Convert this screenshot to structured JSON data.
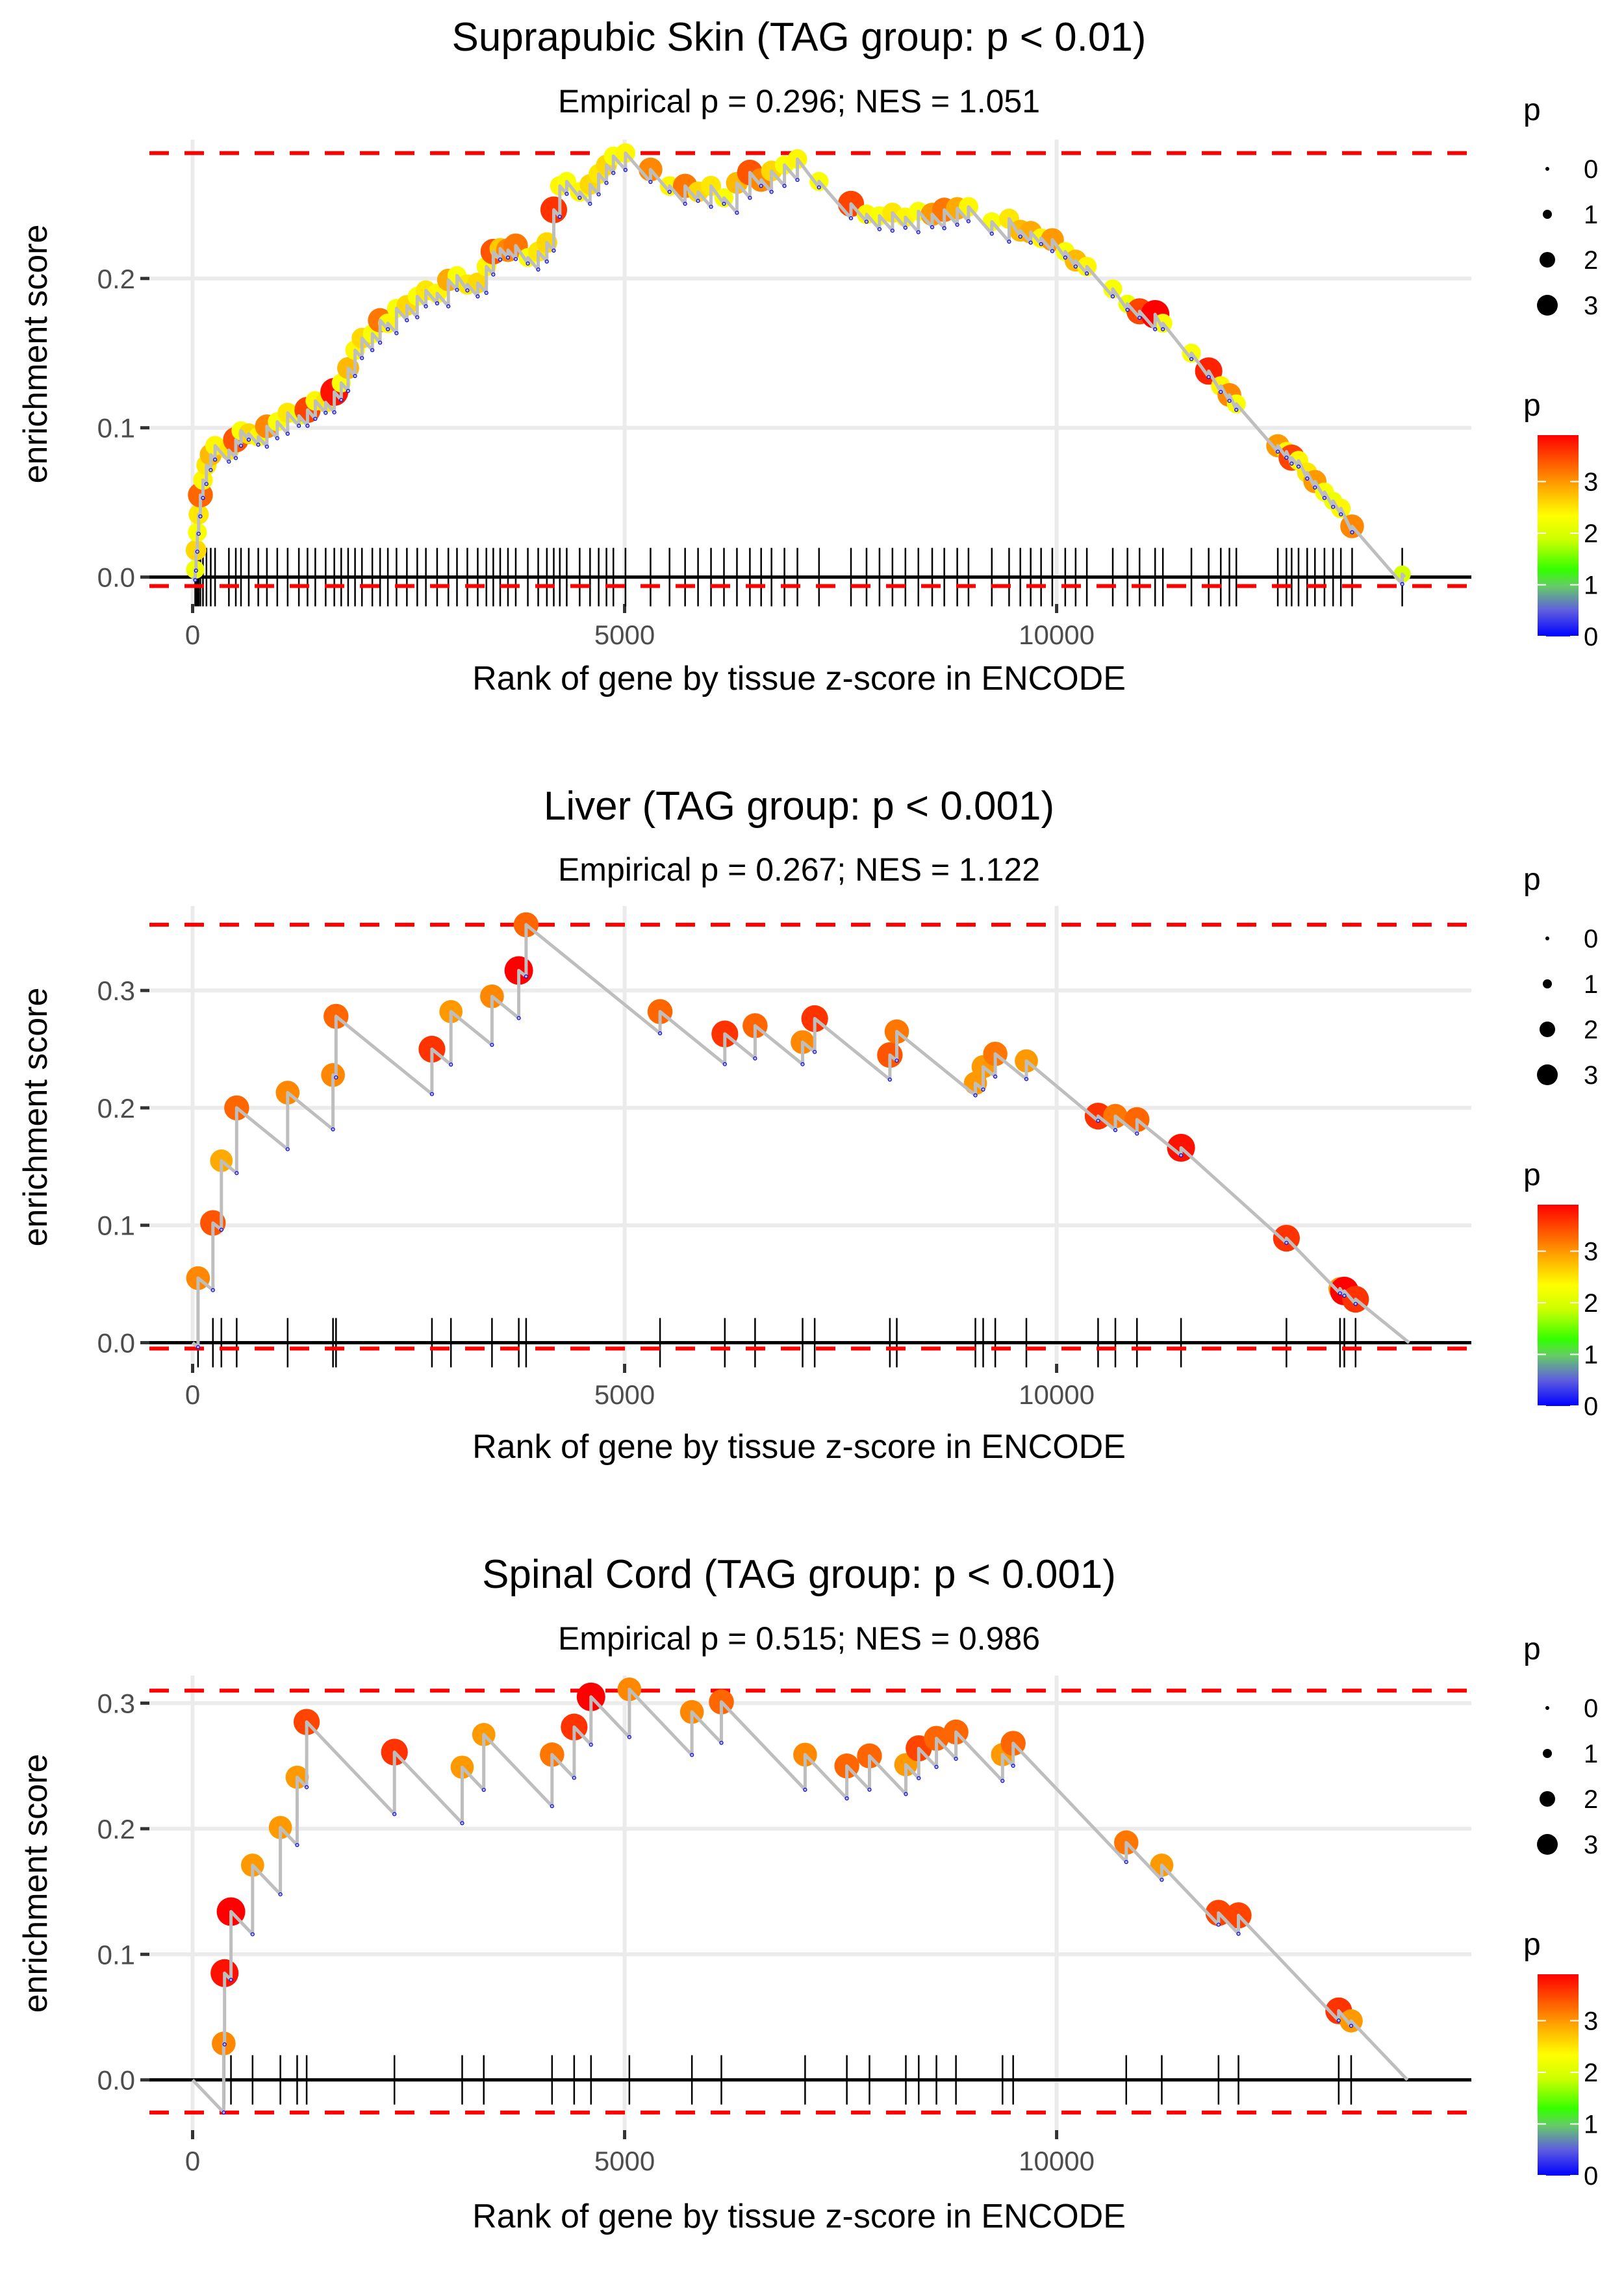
{
  "chart_data": [
    {
      "type": "line",
      "subtype": "gsea-enrichment",
      "title": "Suprapubic Skin (TAG group: p < 0.01)",
      "subtitle": "Empirical p = 0.296; NES = 1.051",
      "xlabel": "Rank of gene by tissue z-score in ENCODE",
      "ylabel": "enrichment score",
      "xlim": [
        -500,
        14800
      ],
      "ylim": [
        -0.018,
        0.293
      ],
      "x_ticks": [
        0,
        5000,
        10000
      ],
      "x_tick_labels": [
        "0",
        "5000",
        "10000"
      ],
      "y_ticks": [
        0.0,
        0.1,
        0.2
      ],
      "y_tick_labels": [
        "0.0",
        "0.1",
        "0.2"
      ],
      "grid": true,
      "max_es": 0.284,
      "min_es": -0.006,
      "n_genes": 14030,
      "hits": [
        {
          "rank": 30,
          "es": 0.005,
          "p": 2.2
        },
        {
          "rank": 40,
          "es": 0.018,
          "p": 2.6
        },
        {
          "rank": 55,
          "es": 0.03,
          "p": 2.3
        },
        {
          "rank": 70,
          "es": 0.042,
          "p": 2.5
        },
        {
          "rank": 90,
          "es": 0.055,
          "p": 3.3
        },
        {
          "rank": 120,
          "es": 0.065,
          "p": 2.4
        },
        {
          "rank": 160,
          "es": 0.075,
          "p": 2.5
        },
        {
          "rank": 210,
          "es": 0.082,
          "p": 2.8
        },
        {
          "rank": 260,
          "es": 0.088,
          "p": 2.4
        },
        {
          "rank": 420,
          "es": 0.085,
          "p": 2.5
        },
        {
          "rank": 500,
          "es": 0.092,
          "p": 3.4
        },
        {
          "rank": 560,
          "es": 0.098,
          "p": 2.3
        },
        {
          "rank": 650,
          "es": 0.096,
          "p": 2.6
        },
        {
          "rank": 760,
          "es": 0.094,
          "p": 2.4
        },
        {
          "rank": 860,
          "es": 0.101,
          "p": 3.1
        },
        {
          "rank": 980,
          "es": 0.104,
          "p": 2.3
        },
        {
          "rank": 1100,
          "es": 0.11,
          "p": 2.5
        },
        {
          "rank": 1230,
          "es": 0.108,
          "p": 2.2
        },
        {
          "rank": 1330,
          "es": 0.112,
          "p": 3.5
        },
        {
          "rank": 1420,
          "es": 0.118,
          "p": 2.4
        },
        {
          "rank": 1540,
          "es": 0.117,
          "p": 2.5
        },
        {
          "rank": 1640,
          "es": 0.124,
          "p": 3.8
        },
        {
          "rank": 1720,
          "es": 0.13,
          "p": 2.3
        },
        {
          "rank": 1800,
          "es": 0.14,
          "p": 2.8
        },
        {
          "rank": 1880,
          "es": 0.152,
          "p": 2.4
        },
        {
          "rank": 1960,
          "es": 0.16,
          "p": 2.6
        },
        {
          "rank": 2080,
          "es": 0.163,
          "p": 2.3
        },
        {
          "rank": 2170,
          "es": 0.172,
          "p": 3.2
        },
        {
          "rank": 2260,
          "es": 0.17,
          "p": 2.4
        },
        {
          "rank": 2360,
          "es": 0.18,
          "p": 2.3
        },
        {
          "rank": 2480,
          "es": 0.182,
          "p": 2.6
        },
        {
          "rank": 2600,
          "es": 0.188,
          "p": 2.3
        },
        {
          "rank": 2700,
          "es": 0.192,
          "p": 2.5
        },
        {
          "rank": 2830,
          "es": 0.19,
          "p": 2.4
        },
        {
          "rank": 2960,
          "es": 0.199,
          "p": 2.9
        },
        {
          "rank": 3060,
          "es": 0.202,
          "p": 2.3
        },
        {
          "rank": 3180,
          "es": 0.196,
          "p": 2.5
        },
        {
          "rank": 3300,
          "es": 0.197,
          "p": 2.6
        },
        {
          "rank": 3400,
          "es": 0.208,
          "p": 2.4
        },
        {
          "rank": 3480,
          "es": 0.218,
          "p": 3.4
        },
        {
          "rank": 3560,
          "es": 0.22,
          "p": 2.7
        },
        {
          "rank": 3650,
          "es": 0.219,
          "p": 3.1
        },
        {
          "rank": 3740,
          "es": 0.222,
          "p": 3.2
        },
        {
          "rank": 3880,
          "es": 0.214,
          "p": 2.3
        },
        {
          "rank": 4000,
          "es": 0.218,
          "p": 2.5
        },
        {
          "rank": 4100,
          "es": 0.224,
          "p": 2.6
        },
        {
          "rank": 4180,
          "es": 0.246,
          "p": 3.6
        },
        {
          "rank": 4250,
          "es": 0.262,
          "p": 2.4
        },
        {
          "rank": 4330,
          "es": 0.265,
          "p": 2.3
        },
        {
          "rank": 4480,
          "es": 0.258,
          "p": 2.4
        },
        {
          "rank": 4600,
          "es": 0.263,
          "p": 2.6
        },
        {
          "rank": 4700,
          "es": 0.27,
          "p": 2.5
        },
        {
          "rank": 4790,
          "es": 0.276,
          "p": 2.6
        },
        {
          "rank": 4870,
          "es": 0.282,
          "p": 2.3
        },
        {
          "rank": 5010,
          "es": 0.284,
          "p": 2.4
        },
        {
          "rank": 5300,
          "es": 0.273,
          "p": 3.1
        },
        {
          "rank": 5520,
          "es": 0.262,
          "p": 2.4
        },
        {
          "rank": 5700,
          "es": 0.262,
          "p": 3.2
        },
        {
          "rank": 5850,
          "es": 0.258,
          "p": 2.6
        },
        {
          "rank": 6000,
          "es": 0.262,
          "p": 2.5
        },
        {
          "rank": 6150,
          "es": 0.254,
          "p": 2.3
        },
        {
          "rank": 6300,
          "es": 0.264,
          "p": 2.8
        },
        {
          "rank": 6450,
          "es": 0.271,
          "p": 3.4
        },
        {
          "rank": 6580,
          "es": 0.266,
          "p": 3.1
        },
        {
          "rank": 6700,
          "es": 0.272,
          "p": 2.6
        },
        {
          "rank": 6850,
          "es": 0.276,
          "p": 2.3
        },
        {
          "rank": 7000,
          "es": 0.28,
          "p": 2.4
        },
        {
          "rank": 7250,
          "es": 0.265,
          "p": 2.3
        },
        {
          "rank": 7620,
          "es": 0.25,
          "p": 3.5
        },
        {
          "rank": 7800,
          "es": 0.243,
          "p": 2.4
        },
        {
          "rank": 7950,
          "es": 0.242,
          "p": 2.3
        },
        {
          "rank": 8100,
          "es": 0.244,
          "p": 2.5
        },
        {
          "rank": 8250,
          "es": 0.241,
          "p": 2.4
        },
        {
          "rank": 8400,
          "es": 0.245,
          "p": 2.3
        },
        {
          "rank": 8560,
          "es": 0.243,
          "p": 3.0
        },
        {
          "rank": 8700,
          "es": 0.246,
          "p": 3.2
        },
        {
          "rank": 8850,
          "es": 0.247,
          "p": 2.9
        },
        {
          "rank": 8980,
          "es": 0.248,
          "p": 2.4
        },
        {
          "rank": 9250,
          "es": 0.238,
          "p": 2.3
        },
        {
          "rank": 9450,
          "es": 0.24,
          "p": 2.5
        },
        {
          "rank": 9580,
          "es": 0.232,
          "p": 2.8
        },
        {
          "rank": 9700,
          "es": 0.231,
          "p": 2.9
        },
        {
          "rank": 9820,
          "es": 0.227,
          "p": 2.4
        },
        {
          "rank": 9950,
          "es": 0.226,
          "p": 3.0
        },
        {
          "rank": 10100,
          "es": 0.218,
          "p": 2.3
        },
        {
          "rank": 10220,
          "es": 0.212,
          "p": 2.8
        },
        {
          "rank": 10350,
          "es": 0.208,
          "p": 2.4
        },
        {
          "rank": 10650,
          "es": 0.193,
          "p": 2.3
        },
        {
          "rank": 10820,
          "es": 0.183,
          "p": 2.2
        },
        {
          "rank": 10960,
          "es": 0.178,
          "p": 3.5
        },
        {
          "rank": 11140,
          "es": 0.176,
          "p": 3.9
        },
        {
          "rank": 11230,
          "es": 0.17,
          "p": 2.3
        },
        {
          "rank": 11560,
          "es": 0.15,
          "p": 2.3
        },
        {
          "rank": 11760,
          "es": 0.138,
          "p": 3.7
        },
        {
          "rank": 11900,
          "es": 0.128,
          "p": 2.4
        },
        {
          "rank": 12000,
          "es": 0.122,
          "p": 3.1
        },
        {
          "rank": 12080,
          "es": 0.116,
          "p": 2.3
        },
        {
          "rank": 12560,
          "es": 0.088,
          "p": 3.0
        },
        {
          "rank": 12660,
          "es": 0.084,
          "p": 2.4
        },
        {
          "rank": 12720,
          "es": 0.08,
          "p": 3.5
        },
        {
          "rank": 12800,
          "es": 0.078,
          "p": 2.4
        },
        {
          "rank": 12900,
          "es": 0.07,
          "p": 2.5
        },
        {
          "rank": 12990,
          "es": 0.064,
          "p": 3.0
        },
        {
          "rank": 13100,
          "es": 0.057,
          "p": 2.3
        },
        {
          "rank": 13200,
          "es": 0.051,
          "p": 2.2
        },
        {
          "rank": 13290,
          "es": 0.046,
          "p": 2.4
        },
        {
          "rank": 13420,
          "es": 0.034,
          "p": 3.1
        },
        {
          "rank": 14000,
          "es": 0.002,
          "p": 2.0
        }
      ]
    },
    {
      "type": "line",
      "subtype": "gsea-enrichment",
      "title": "Liver (TAG group: p < 0.001)",
      "subtitle": "Empirical p = 0.267; NES = 1.122",
      "xlabel": "Rank of gene by tissue z-score in ENCODE",
      "ylabel": "enrichment score",
      "xlim": [
        -500,
        14800
      ],
      "ylim": [
        -0.018,
        0.372
      ],
      "x_ticks": [
        0,
        5000,
        10000
      ],
      "x_tick_labels": [
        "0",
        "5000",
        "10000"
      ],
      "y_ticks": [
        0.0,
        0.1,
        0.2,
        0.3
      ],
      "y_tick_labels": [
        "0.0",
        "0.1",
        "0.2",
        "0.3"
      ],
      "grid": true,
      "max_es": 0.356,
      "min_es": -0.005,
      "n_genes": 14080,
      "hits": [
        {
          "rank": 63,
          "es": 0.055,
          "p": 3.1
        },
        {
          "rank": 235,
          "es": 0.102,
          "p": 3.4
        },
        {
          "rank": 333,
          "es": 0.155,
          "p": 2.9
        },
        {
          "rank": 510,
          "es": 0.2,
          "p": 3.3
        },
        {
          "rank": 1100,
          "es": 0.213,
          "p": 3.1
        },
        {
          "rank": 1625,
          "es": 0.228,
          "p": 3.1
        },
        {
          "rank": 1660,
          "es": 0.278,
          "p": 3.3
        },
        {
          "rank": 2770,
          "es": 0.25,
          "p": 3.6
        },
        {
          "rank": 2990,
          "es": 0.282,
          "p": 3.0
        },
        {
          "rank": 3465,
          "es": 0.295,
          "p": 3.1
        },
        {
          "rank": 3775,
          "es": 0.317,
          "p": 3.9
        },
        {
          "rank": 3860,
          "es": 0.356,
          "p": 3.3
        },
        {
          "rank": 5410,
          "es": 0.282,
          "p": 3.3
        },
        {
          "rank": 6160,
          "es": 0.263,
          "p": 3.6
        },
        {
          "rank": 6510,
          "es": 0.27,
          "p": 3.3
        },
        {
          "rank": 7060,
          "es": 0.256,
          "p": 3.1
        },
        {
          "rank": 7200,
          "es": 0.276,
          "p": 3.6
        },
        {
          "rank": 8070,
          "es": 0.245,
          "p": 3.4
        },
        {
          "rank": 8150,
          "es": 0.265,
          "p": 3.2
        },
        {
          "rank": 9060,
          "es": 0.221,
          "p": 3.0
        },
        {
          "rank": 9150,
          "es": 0.235,
          "p": 3.0
        },
        {
          "rank": 9290,
          "es": 0.246,
          "p": 3.2
        },
        {
          "rank": 9650,
          "es": 0.24,
          "p": 3.0
        },
        {
          "rank": 10480,
          "es": 0.193,
          "p": 3.6
        },
        {
          "rank": 10680,
          "es": 0.193,
          "p": 3.2
        },
        {
          "rank": 10930,
          "es": 0.19,
          "p": 3.3
        },
        {
          "rank": 11440,
          "es": 0.166,
          "p": 3.8
        },
        {
          "rank": 12660,
          "es": 0.089,
          "p": 3.6
        },
        {
          "rank": 13280,
          "es": 0.046,
          "p": 3.0
        },
        {
          "rank": 13330,
          "es": 0.044,
          "p": 3.9
        },
        {
          "rank": 13460,
          "es": 0.037,
          "p": 3.6
        }
      ]
    },
    {
      "type": "line",
      "subtype": "gsea-enrichment",
      "title": "Spinal Cord (TAG group: p < 0.001)",
      "subtitle": "Empirical p = 0.515; NES = 0.986",
      "xlabel": "Rank of gene by tissue z-score in ENCODE",
      "ylabel": "enrichment score",
      "xlim": [
        -500,
        14800
      ],
      "ylim": [
        -0.04,
        0.322
      ],
      "x_ticks": [
        0,
        5000,
        10000
      ],
      "x_tick_labels": [
        "0",
        "5000",
        "10000"
      ],
      "y_ticks": [
        0.0,
        0.1,
        0.2,
        0.3
      ],
      "y_tick_labels": [
        "0.0",
        "0.1",
        "0.2",
        "0.3"
      ],
      "grid": true,
      "max_es": 0.31,
      "min_es": -0.026,
      "n_genes": 14060,
      "hits": [
        {
          "rank": 360,
          "es": 0.029,
          "p": 3.1
        },
        {
          "rank": 370,
          "es": 0.085,
          "p": 3.8
        },
        {
          "rank": 444,
          "es": 0.134,
          "p": 3.9
        },
        {
          "rank": 694,
          "es": 0.171,
          "p": 3.0
        },
        {
          "rank": 1016,
          "es": 0.201,
          "p": 3.0
        },
        {
          "rank": 1210,
          "es": 0.241,
          "p": 3.0
        },
        {
          "rank": 1320,
          "es": 0.285,
          "p": 3.5
        },
        {
          "rank": 2336,
          "es": 0.261,
          "p": 3.6
        },
        {
          "rank": 3120,
          "es": 0.249,
          "p": 3.0
        },
        {
          "rank": 3370,
          "es": 0.275,
          "p": 3.0
        },
        {
          "rank": 4160,
          "es": 0.259,
          "p": 3.2
        },
        {
          "rank": 4416,
          "es": 0.281,
          "p": 3.6
        },
        {
          "rank": 4611,
          "es": 0.305,
          "p": 3.9
        },
        {
          "rank": 5055,
          "es": 0.311,
          "p": 3.1
        },
        {
          "rank": 5779,
          "es": 0.293,
          "p": 3.1
        },
        {
          "rank": 6120,
          "es": 0.301,
          "p": 3.3
        },
        {
          "rank": 7089,
          "es": 0.259,
          "p": 3.1
        },
        {
          "rank": 7572,
          "es": 0.25,
          "p": 3.3
        },
        {
          "rank": 7834,
          "es": 0.258,
          "p": 3.3
        },
        {
          "rank": 8255,
          "es": 0.251,
          "p": 3.0
        },
        {
          "rank": 8404,
          "es": 0.264,
          "p": 3.5
        },
        {
          "rank": 8609,
          "es": 0.272,
          "p": 3.3
        },
        {
          "rank": 8835,
          "es": 0.277,
          "p": 3.3
        },
        {
          "rank": 9374,
          "es": 0.259,
          "p": 3.0
        },
        {
          "rank": 9497,
          "es": 0.268,
          "p": 3.3
        },
        {
          "rank": 10806,
          "es": 0.189,
          "p": 3.2
        },
        {
          "rank": 11217,
          "es": 0.171,
          "p": 3.0
        },
        {
          "rank": 11874,
          "es": 0.133,
          "p": 3.5
        },
        {
          "rank": 12105,
          "es": 0.131,
          "p": 3.5
        },
        {
          "rank": 13265,
          "es": 0.055,
          "p": 3.6
        },
        {
          "rank": 13409,
          "es": 0.047,
          "p": 3.0
        }
      ]
    }
  ],
  "legend": {
    "size_title": "p",
    "size_levels": [
      "0",
      "1",
      "2",
      "3"
    ],
    "color_title": "p",
    "color_ticks": [
      "3",
      "2",
      "1",
      "0"
    ],
    "color_stops": [
      "#0000ff",
      "#66cc66",
      "#33ff00",
      "#ccff00",
      "#ffff00",
      "#ffaa00",
      "#ff5500",
      "#ff0000"
    ],
    "color_range": [
      0,
      3.9
    ]
  },
  "colors": {
    "dashed_line": "#ff0000",
    "es_line": "#bebebe",
    "zero_line": "#000000",
    "grid": "#ebebeb",
    "rug": "#000000",
    "trough_marker": "#0000ff"
  }
}
